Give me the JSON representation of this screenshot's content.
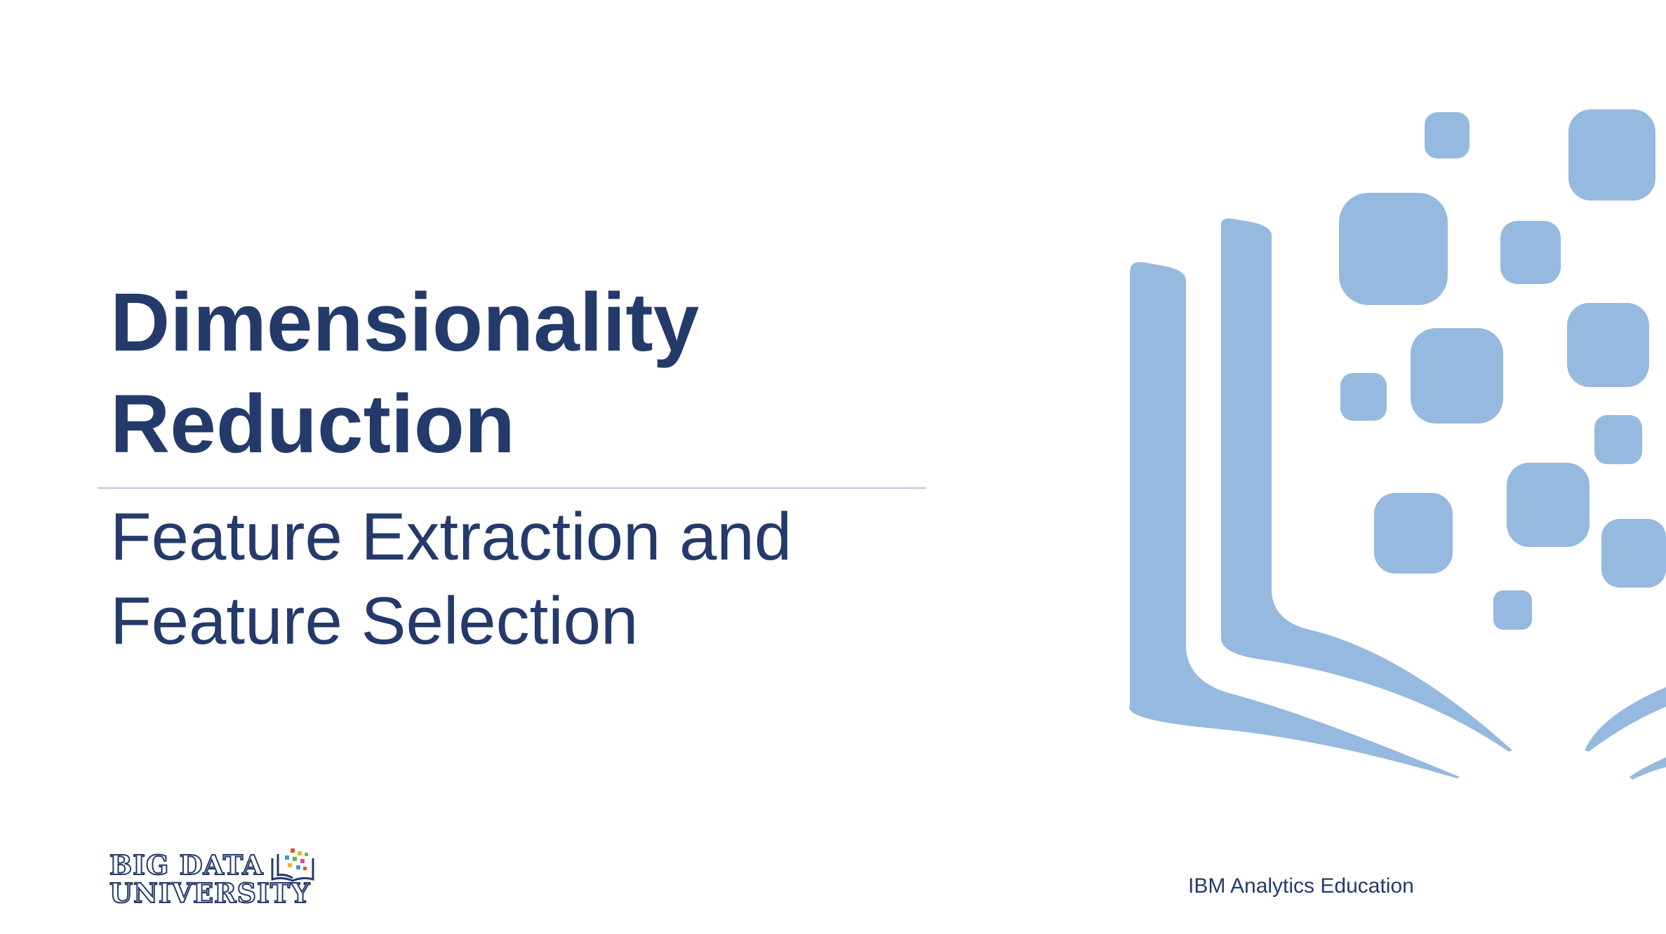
{
  "slide": {
    "title_lines": [
      "Dimensionality",
      "Reduction"
    ],
    "subtitle_lines": [
      "Feature Extraction and",
      "Feature Selection"
    ],
    "footer": "IBM Analytics Education",
    "logo": {
      "lines": [
        "BIG DATA",
        "UNIVERSITY"
      ],
      "icon": "open-book-pixels-icon"
    },
    "graphic": {
      "icon": "open-book-with-data-squares-icon",
      "color": "#96b9df"
    },
    "colors": {
      "text": "#243a6b",
      "divider": "#b7c7da",
      "background": "#ffffff"
    }
  }
}
